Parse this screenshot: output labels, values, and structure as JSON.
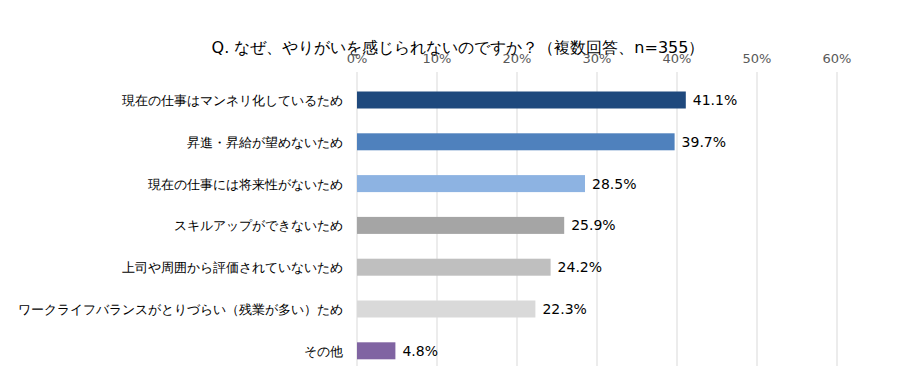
{
  "chart_data": {
    "type": "bar",
    "orientation": "horizontal",
    "title": "Q. なぜ、やりがいを感じられないのですか？（複数回答、n=355）",
    "categories": [
      "現在の仕事はマンネリ化しているため",
      "昇進・昇給が望めないため",
      "現在の仕事には将来性がないため",
      "スキルアップができないため",
      "上司や周囲から評価されていないため",
      "ワークライフバランスがとりづらい（残業が多い）ため",
      "その他"
    ],
    "values": [
      41.1,
      39.7,
      28.5,
      25.9,
      24.2,
      22.3,
      4.8
    ],
    "value_labels": [
      "41.1%",
      "39.7%",
      "28.5%",
      "25.9%",
      "24.2%",
      "22.3%",
      "4.8%"
    ],
    "colors": [
      "#1f497d",
      "#4f81bd",
      "#8db3e2",
      "#a5a5a5",
      "#bfbfbf",
      "#d9d9d9",
      "#8064a2"
    ],
    "xlim": [
      0,
      60
    ],
    "xticks": [
      {
        "value": 0,
        "label": "0%"
      },
      {
        "value": 10,
        "label": "10%"
      },
      {
        "value": 20,
        "label": "20%"
      },
      {
        "value": 30,
        "label": "30%"
      },
      {
        "value": 40,
        "label": "40%"
      },
      {
        "value": 50,
        "label": "50%"
      },
      {
        "value": 60,
        "label": "60%"
      }
    ],
    "grid": true,
    "data_labels": true
  }
}
